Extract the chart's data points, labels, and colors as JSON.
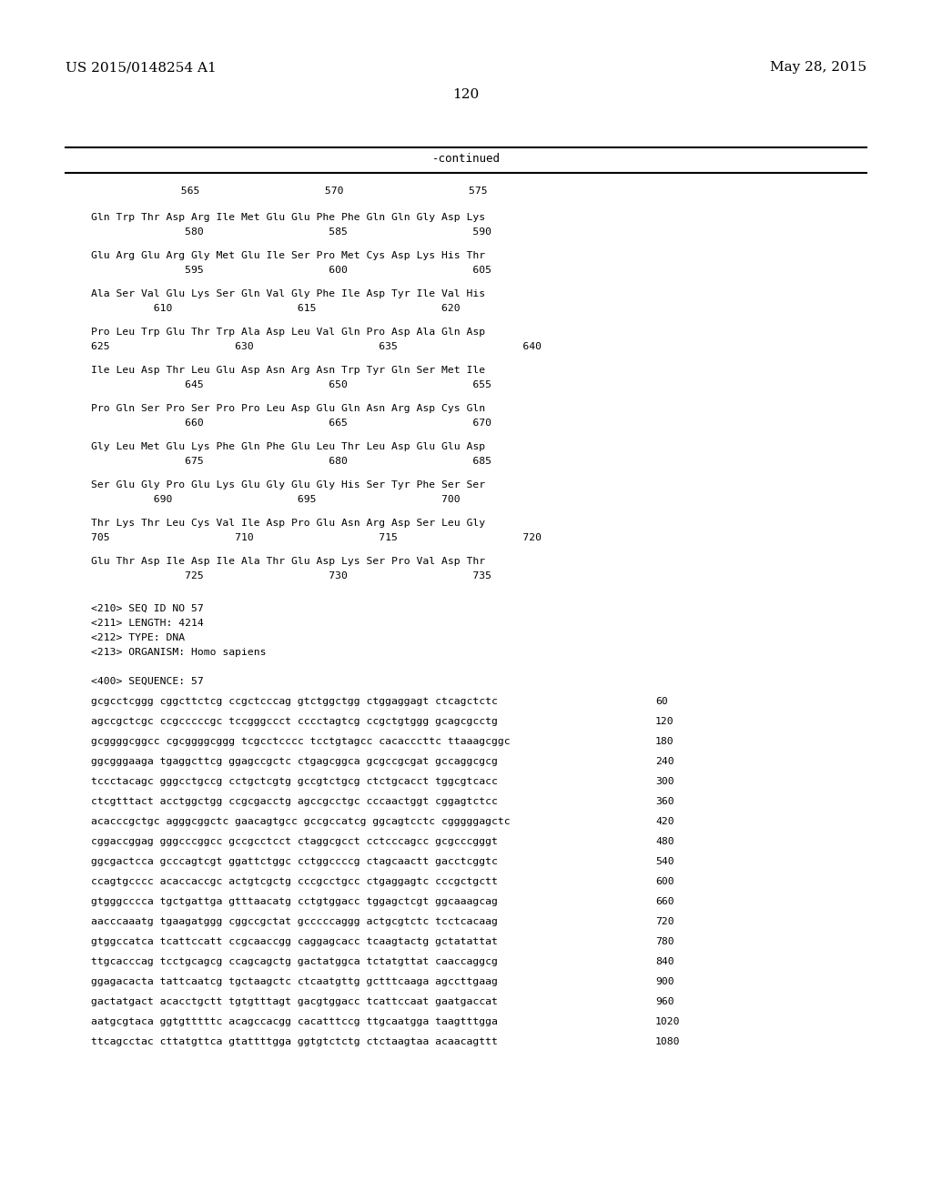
{
  "header_left": "US 2015/0148254 A1",
  "header_right": "May 28, 2015",
  "page_number": "120",
  "continued_text": "-continued",
  "background_color": "#ffffff",
  "text_color": "#000000",
  "amino_blocks": [
    {
      "seq": "Gln Trp Thr Asp Arg Ile Met Glu Glu Phe Phe Gln Gln Gly Asp Lys",
      "pos": "               580                    585                    590"
    },
    {
      "seq": "Glu Arg Glu Arg Gly Met Glu Ile Ser Pro Met Cys Asp Lys His Thr",
      "pos": "               595                    600                    605"
    },
    {
      "seq": "Ala Ser Val Glu Lys Ser Gln Val Gly Phe Ile Asp Tyr Ile Val His",
      "pos": "          610                    615                    620"
    },
    {
      "seq": "Pro Leu Trp Glu Thr Trp Ala Asp Leu Val Gln Pro Asp Ala Gln Asp",
      "pos": "625                    630                    635                    640"
    },
    {
      "seq": "Ile Leu Asp Thr Leu Glu Asp Asn Arg Asn Trp Tyr Gln Ser Met Ile",
      "pos": "               645                    650                    655"
    },
    {
      "seq": "Pro Gln Ser Pro Ser Pro Pro Leu Asp Glu Gln Asn Arg Asp Cys Gln",
      "pos": "               660                    665                    670"
    },
    {
      "seq": "Gly Leu Met Glu Lys Phe Gln Phe Glu Leu Thr Leu Asp Glu Glu Asp",
      "pos": "               675                    680                    685"
    },
    {
      "seq": "Ser Glu Gly Pro Glu Lys Glu Gly Glu Gly His Ser Tyr Phe Ser Ser",
      "pos": "          690                    695                    700"
    },
    {
      "seq": "Thr Lys Thr Leu Cys Val Ile Asp Pro Glu Asn Arg Asp Ser Leu Gly",
      "pos": "705                    710                    715                    720"
    },
    {
      "seq": "Glu Thr Asp Ile Asp Ile Ala Thr Glu Asp Lys Ser Pro Val Asp Thr",
      "pos": "               725                    730                    735"
    }
  ],
  "dna_lines": [
    {
      "seq": "gcgcctcggg cggcttctcg ccgctcccag gtctggctgg ctggaggagt ctcagctctc",
      "num": "60"
    },
    {
      "seq": "agccgctcgc ccgcccccgc tccgggccct cccctagtcg ccgctgtggg gcagcgcctg",
      "num": "120"
    },
    {
      "seq": "gcggggcggcc cgcggggcggg tcgcctcccc tcctgtagcc cacacccttc ttaaagcggc",
      "num": "180"
    },
    {
      "seq": "ggcgggaaga tgaggcttcg ggagccgctc ctgagcggca gcgccgcgat gccaggcgcg",
      "num": "240"
    },
    {
      "seq": "tccctacagc gggcctgccg cctgctcgtg gccgtctgcg ctctgcacct tggcgtcacc",
      "num": "300"
    },
    {
      "seq": "ctcgtttact acctggctgg ccgcgacctg agccgcctgc cccaactggt cggagtctcc",
      "num": "360"
    },
    {
      "seq": "acacccgctgc agggcggctc gaacagtgcc gccgccatcg ggcagtcctc cgggggagctc",
      "num": "420"
    },
    {
      "seq": "cggaccggag gggcccggcc gccgcctcct ctaggcgcct cctcccagcc gcgcccgggt",
      "num": "480"
    },
    {
      "seq": "ggcgactcca gcccagtcgt ggattctggc cctggccccg ctagcaactt gacctcggtc",
      "num": "540"
    },
    {
      "seq": "ccagtgcccc acaccaccgc actgtcgctg cccgcctgcc ctgaggagtc cccgctgctt",
      "num": "600"
    },
    {
      "seq": "gtgggcccca tgctgattga gtttaacatg cctgtggacc tggagctcgt ggcaaagcag",
      "num": "660"
    },
    {
      "seq": "aacccaaatg tgaagatggg cggccgctat gcccccaggg actgcgtctc tcctcacaag",
      "num": "720"
    },
    {
      "seq": "gtggccatca tcattccatt ccgcaaccgg caggagcacc tcaagtactg gctatattat",
      "num": "780"
    },
    {
      "seq": "ttgcacccag tcctgcagcg ccagcagctg gactatggca tctatgttat caaccaggcg",
      "num": "840"
    },
    {
      "seq": "ggagacacta tattcaatcg tgctaagctc ctcaatgttg gctttcaaga agccttgaag",
      "num": "900"
    },
    {
      "seq": "gactatgact acacctgctt tgtgtttagt gacgtggacc tcattccaat gaatgaccat",
      "num": "960"
    },
    {
      "seq": "aatgcgtaca ggtgtttttc acagccacgg cacatttccg ttgcaatgga taagtttgga",
      "num": "1020"
    },
    {
      "seq": "ttcagcctac cttatgttca gtattttgga ggtgtctctg ctctaagtaa acaacagttt",
      "num": "1080"
    }
  ]
}
